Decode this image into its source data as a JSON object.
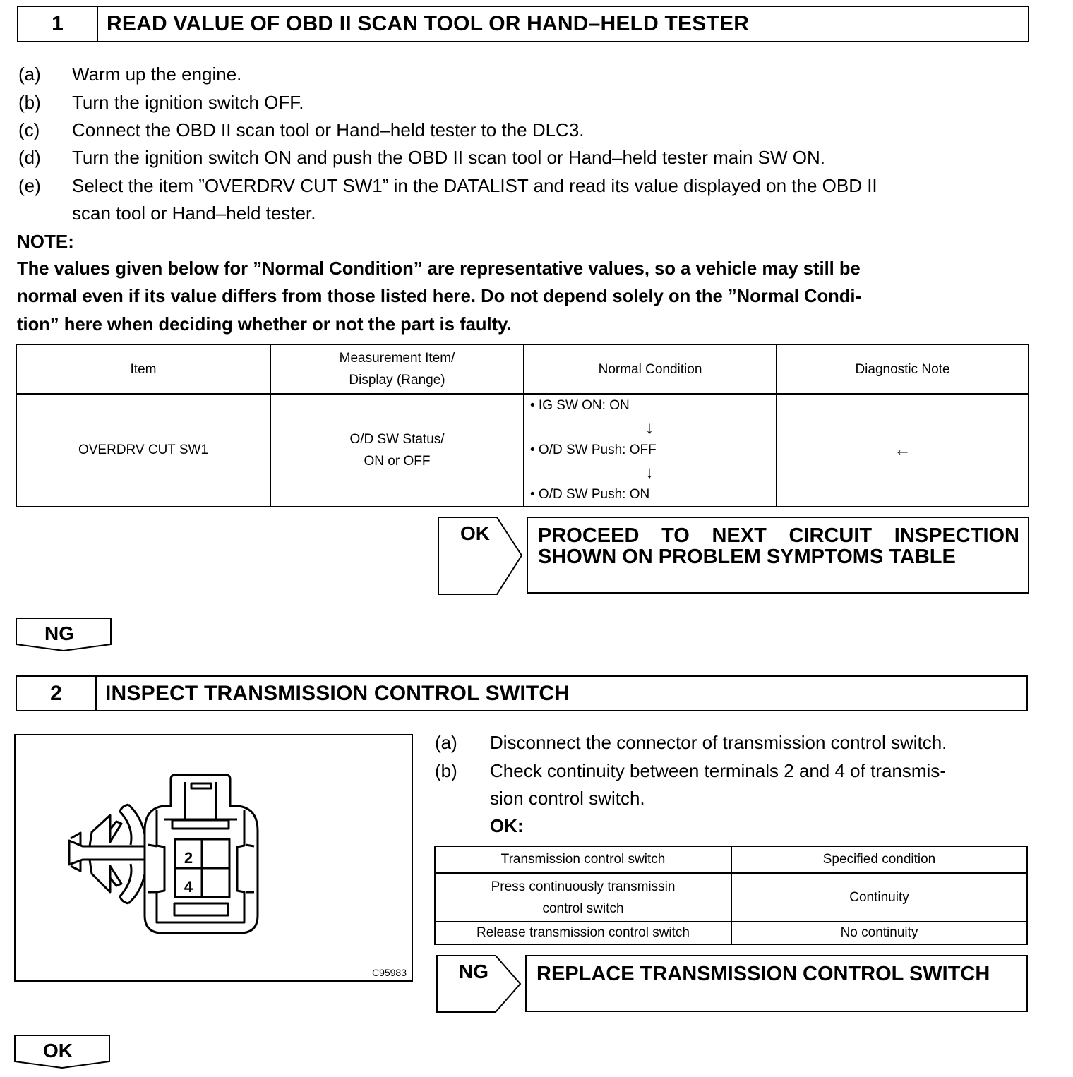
{
  "step1": {
    "number": "1",
    "title": "READ VALUE OF OBD II SCAN TOOL OR HAND–HELD TESTER",
    "steps": [
      {
        "label": "(a)",
        "text": "Warm up the engine."
      },
      {
        "label": "(b)",
        "text": "Turn the ignition switch OFF."
      },
      {
        "label": "(c)",
        "text": "Connect the OBD II scan tool or Hand–held tester to the DLC3."
      },
      {
        "label": "(d)",
        "text": "Turn the ignition switch ON and push the OBD II scan tool or Hand–held tester main SW ON."
      },
      {
        "label": "(e)",
        "text": "Select the item ”OVERDRV CUT SW1” in the DATALIST and read its value displayed on the OBD II",
        "text2": "scan tool or Hand–held tester."
      }
    ],
    "note_heading": "NOTE:",
    "note_lines": [
      "The values given below for ”Normal Condition” are representative values, so a vehicle may still be",
      "normal even if its value differs from those listed here. Do not depend solely on the ”Normal Condi-",
      "tion” here when deciding whether or not the part is faulty."
    ],
    "table": {
      "headers": [
        "Item",
        "Measurement Item/",
        "Display (Range)",
        "Normal Condition",
        "Diagnostic Note"
      ],
      "row": {
        "item": "OVERDRV CUT SW1",
        "measurement1": "O/D SW Status/",
        "measurement2": "ON or OFF",
        "conditions": [
          "• IG SW ON: ON",
          "↓",
          "• O/D SW Push: OFF",
          "↓",
          "• O/D SW Push: ON"
        ],
        "note": "←"
      }
    },
    "ok_label": "OK",
    "ok_result": "PROCEED TO NEXT CIRCUIT INSPECTION SHOWN ON PROBLEM SYMPTOMS TABLE",
    "ng_label": "NG"
  },
  "step2": {
    "number": "2",
    "title": "INSPECT TRANSMISSION CONTROL SWITCH",
    "figure": {
      "terminal_top": "2",
      "terminal_bottom": "4",
      "code": "C95983"
    },
    "steps": [
      {
        "label": "(a)",
        "text": "Disconnect the connector of transmission control switch."
      },
      {
        "label": "(b)",
        "text": "Check continuity between terminals 2 and 4 of transmis-",
        "text2": "sion control switch."
      }
    ],
    "ok_heading": "OK:",
    "table": {
      "headers": [
        "Transmission control switch",
        "Specified condition"
      ],
      "rows": [
        {
          "switch1": "Press continuously transmissin",
          "switch2": "control switch",
          "condition": "Continuity"
        },
        {
          "switch1": "Release transmission control switch",
          "condition": "No continuity"
        }
      ]
    },
    "ng_label": "NG",
    "ng_result": "REPLACE TRANSMISSION CONTROL SWITCH",
    "ok_label": "OK"
  }
}
